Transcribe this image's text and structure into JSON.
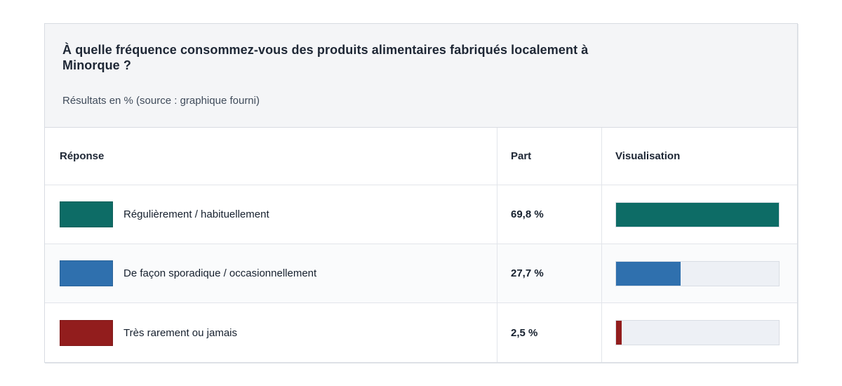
{
  "card": {
    "title": "À quelle fréquence consommez-vous des produits alimentaires fabriqués localement à Minorque ?",
    "subtitle": "Résultats en % (source : graphique fourni)"
  },
  "table": {
    "columns": [
      "Réponse",
      "Part",
      "Visualisation"
    ],
    "bar_scale_max": 69.8,
    "rows": [
      {
        "label": "Régulièrement / habituellement",
        "part": "69,8 %",
        "value": 69.8,
        "color": "#0d6c66"
      },
      {
        "label": "De façon sporadique / occasionnellement",
        "part": "27,7 %",
        "value": 27.7,
        "color": "#2f70ae"
      },
      {
        "label": "Très rarement ou jamais",
        "part": "2,5 %",
        "value": 2.5,
        "color": "#921d1d"
      }
    ]
  },
  "chart_data": {
    "type": "bar",
    "title": "À quelle fréquence consommez-vous des produits alimentaires fabriqués localement à Minorque ?",
    "subtitle": "Résultats en % (source : graphique fourni)",
    "categories": [
      "Régulièrement / habituellement",
      "De façon sporadique / occasionnellement",
      "Très rarement ou jamais"
    ],
    "values": [
      69.8,
      27.7,
      2.5
    ],
    "value_labels": [
      "69,8 %",
      "27,7 %",
      "2,5 %"
    ],
    "colors": [
      "#0d6c66",
      "#2f70ae",
      "#921d1d"
    ],
    "xlabel": "",
    "ylabel": "Part (%)",
    "bars_normalized_to_max": 69.8,
    "legend_position": "none",
    "grid": false
  }
}
